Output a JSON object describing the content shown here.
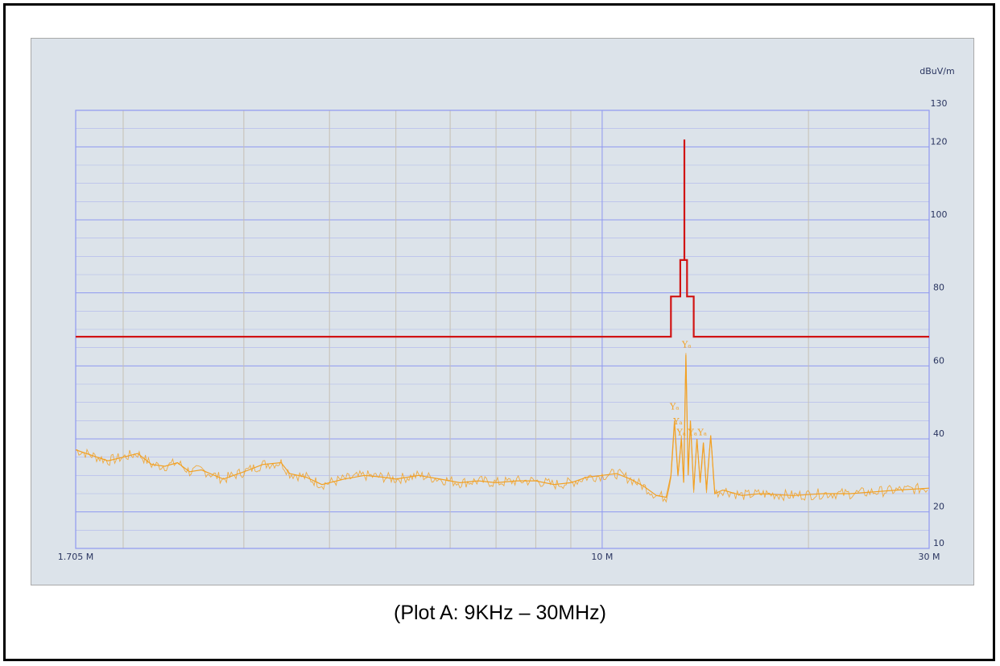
{
  "caption": "(Plot A: 9KHz – 30MHz)",
  "colors": {
    "panel_bg": "#dce3ea",
    "major_grid": "#8f98f0",
    "minor_grid": "#c6c0b4",
    "limit_line": "#d11414",
    "measurement": "#f2a022",
    "marker": "#f2a022"
  },
  "chart_data": {
    "type": "line",
    "x_scale": "log",
    "xlim": [
      1.705,
      30
    ],
    "ylim": [
      10,
      130
    ],
    "ylabel": "dBuV/m",
    "x_tick_labels": [
      {
        "value": 1.705,
        "label": "1.705 M"
      },
      {
        "value": 10,
        "label": "10 M"
      },
      {
        "value": 30,
        "label": "30 M"
      }
    ],
    "y_ticks": [
      10,
      20,
      40,
      60,
      80,
      100,
      120,
      130
    ],
    "grid": true,
    "series": [
      {
        "role": "limit",
        "color": "#d11414",
        "points": [
          [
            1.705,
            68
          ],
          [
            12.6,
            68
          ],
          [
            12.6,
            79
          ],
          [
            13.0,
            79
          ],
          [
            13.0,
            89
          ],
          [
            13.3,
            89
          ],
          [
            13.3,
            79
          ],
          [
            13.6,
            79
          ],
          [
            13.6,
            68
          ],
          [
            30,
            68
          ]
        ]
      },
      {
        "role": "spike",
        "color": "#d11414",
        "points": [
          [
            13.18,
            89
          ],
          [
            13.18,
            122
          ]
        ]
      },
      {
        "role": "measurement",
        "color": "#f2a022",
        "points": [
          [
            1.705,
            37
          ],
          [
            1.8,
            35.5
          ],
          [
            1.9,
            34
          ],
          [
            2.0,
            35
          ],
          [
            2.1,
            36
          ],
          [
            2.2,
            33
          ],
          [
            2.3,
            32.5
          ],
          [
            2.4,
            33.5
          ],
          [
            2.5,
            31
          ],
          [
            2.6,
            31.5
          ],
          [
            2.8,
            29
          ],
          [
            3.0,
            31
          ],
          [
            3.2,
            33
          ],
          [
            3.4,
            33.5
          ],
          [
            3.5,
            30.5
          ],
          [
            3.7,
            29.5
          ],
          [
            3.9,
            27.5
          ],
          [
            4.2,
            29
          ],
          [
            4.5,
            30
          ],
          [
            4.8,
            29.5
          ],
          [
            5.0,
            29
          ],
          [
            5.4,
            30
          ],
          [
            5.8,
            29
          ],
          [
            6.2,
            28
          ],
          [
            6.6,
            28.5
          ],
          [
            7.0,
            28
          ],
          [
            7.5,
            28.5
          ],
          [
            8.0,
            28.5
          ],
          [
            8.5,
            27.5
          ],
          [
            9.0,
            28
          ],
          [
            9.5,
            29.5
          ],
          [
            10.0,
            30
          ],
          [
            10.5,
            30.5
          ],
          [
            11.0,
            29
          ],
          [
            11.5,
            27
          ],
          [
            12.0,
            24.5
          ],
          [
            12.4,
            24
          ],
          [
            12.6,
            30
          ],
          [
            12.75,
            45
          ],
          [
            12.9,
            30
          ],
          [
            13.05,
            40
          ],
          [
            13.15,
            28
          ],
          [
            13.25,
            63
          ],
          [
            13.35,
            30
          ],
          [
            13.45,
            45
          ],
          [
            13.6,
            26
          ],
          [
            13.75,
            40
          ],
          [
            13.9,
            28
          ],
          [
            14.05,
            39
          ],
          [
            14.2,
            26
          ],
          [
            14.4,
            41
          ],
          [
            14.6,
            25
          ],
          [
            15.0,
            26
          ],
          [
            16.0,
            24.5
          ],
          [
            17.0,
            25
          ],
          [
            19.0,
            24.5
          ],
          [
            21.0,
            25
          ],
          [
            23.0,
            25
          ],
          [
            25.0,
            25.5
          ],
          [
            27.0,
            26
          ],
          [
            30.0,
            26.5
          ]
        ]
      }
    ],
    "markers": [
      {
        "x": 12.75,
        "y": 48
      },
      {
        "x": 12.9,
        "y": 44
      },
      {
        "x": 13.05,
        "y": 41
      },
      {
        "x": 13.28,
        "y": 65
      },
      {
        "x": 13.55,
        "y": 41
      },
      {
        "x": 14.0,
        "y": 41
      }
    ],
    "marker_label": "Yₐ"
  }
}
